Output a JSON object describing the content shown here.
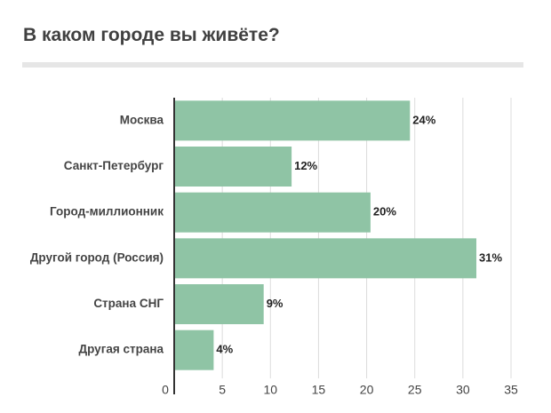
{
  "title": "В каком городе вы живёте?",
  "colors": {
    "bar": "#8fc4a5",
    "grid": "#dcdcdc",
    "axis": "#333333"
  },
  "chart_data": {
    "type": "bar",
    "orientation": "horizontal",
    "categories": [
      "Москва",
      "Санкт-Петербург",
      "Город-миллионник",
      "Другой город (Россия)",
      "Страна СНГ",
      "Другая страна"
    ],
    "values": [
      24.5,
      12.2,
      20.4,
      31.4,
      9.3,
      4.1
    ],
    "value_labels": [
      "24%",
      "12%",
      "20%",
      "31%",
      "9%",
      "4%"
    ],
    "xlim": [
      0,
      35
    ],
    "xticks": [
      0,
      5,
      10,
      15,
      20,
      25,
      30,
      35
    ],
    "grid": true
  }
}
